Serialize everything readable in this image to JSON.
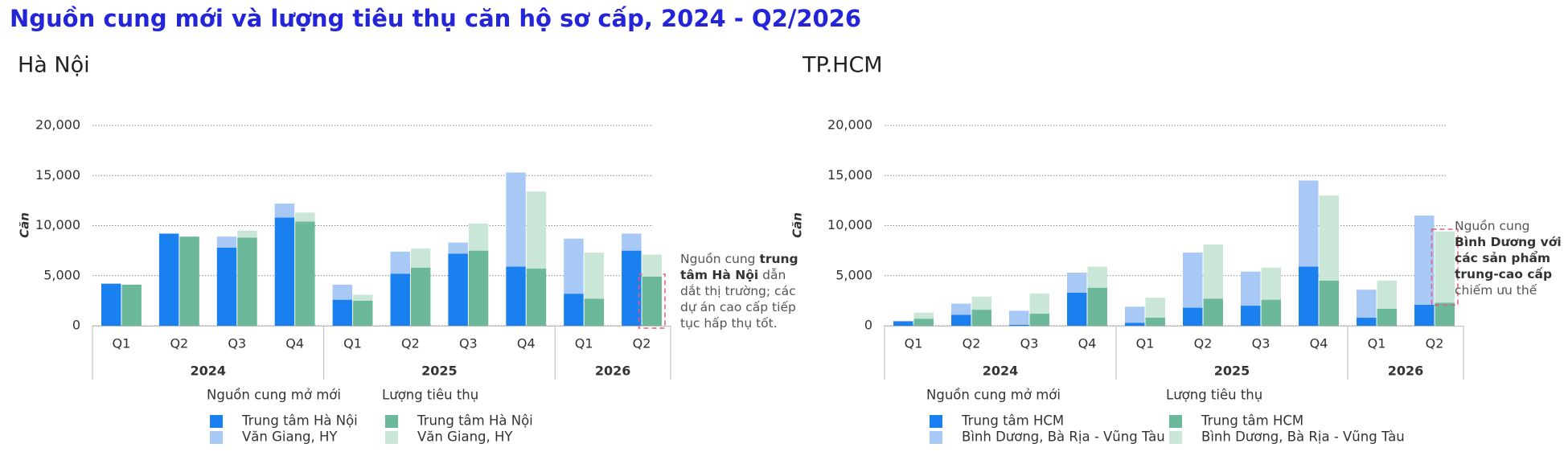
{
  "title": "Nguồn cung mới và lượng tiêu thụ căn hộ sơ cấp, 2024 - Q2/2026",
  "chart_data": [
    {
      "type": "bar",
      "title": "Hà Nội",
      "y_label": "Căn",
      "ylim": [
        0,
        20000
      ],
      "yticks": [
        0,
        {
          "value": 5000,
          "label": "5,000"
        },
        {
          "value": 10000,
          "label": "10,000"
        },
        {
          "value": 15000,
          "label": "15,000"
        },
        {
          "value": 20000,
          "label": "20,000"
        }
      ],
      "grid": true,
      "groups": [
        {
          "name": "2024",
          "categories": [
            "Q1",
            "Q2",
            "Q3",
            "Q4"
          ]
        },
        {
          "name": "2025",
          "categories": [
            "Q1",
            "Q2",
            "Q3",
            "Q4"
          ]
        },
        {
          "name": "2026",
          "categories": [
            "Q1",
            "Q2"
          ]
        }
      ],
      "stacks": [
        {
          "name": "Nguồn cung mở mới",
          "series": [
            {
              "name": "Trung tâm Hà Nội",
              "color": "#1a7fef",
              "values": [
                4200,
                9200,
                7800,
                10800,
                2600,
                5200,
                7200,
                5900,
                3200,
                7500
              ]
            },
            {
              "name": "Văn Giang, HY",
              "color": "#a8c8f5",
              "values": [
                0,
                0,
                1100,
                1400,
                1500,
                2200,
                1100,
                9400,
                5500,
                1700
              ]
            }
          ]
        },
        {
          "name": "Lượng tiêu thụ",
          "series": [
            {
              "name": "Trung tâm Hà Nội",
              "color": "#6bb89a",
              "values": [
                4100,
                8900,
                8800,
                10400,
                2500,
                5800,
                7500,
                5700,
                2700,
                4900
              ]
            },
            {
              "name": "Văn Giang, HY",
              "color": "#c9e6d6",
              "values": [
                0,
                0,
                700,
                900,
                600,
                1900,
                2700,
                7700,
                4600,
                2200
              ]
            }
          ]
        }
      ],
      "annotation": [
        {
          "text": "Nguồn cung "
        },
        {
          "text": "trung tâm Hà Nội",
          "bold": true
        },
        {
          "text": " dẫn dắt thị trường; các dự án cao cấp tiếp tục hấp thụ tốt."
        }
      ]
    },
    {
      "type": "bar",
      "title": "TP.HCM",
      "y_label": "Căn",
      "ylim": [
        0,
        20000
      ],
      "yticks": [
        0,
        {
          "value": 5000,
          "label": "5,000"
        },
        {
          "value": 10000,
          "label": "10,000"
        },
        {
          "value": 15000,
          "label": "15,000"
        },
        {
          "value": 20000,
          "label": "20,000"
        }
      ],
      "grid": true,
      "groups": [
        {
          "name": "2024",
          "categories": [
            "Q1",
            "Q2",
            "Q3",
            "Q4"
          ]
        },
        {
          "name": "2025",
          "categories": [
            "Q1",
            "Q2",
            "Q3",
            "Q4"
          ]
        },
        {
          "name": "2026",
          "categories": [
            "Q1",
            "Q2"
          ]
        }
      ],
      "stacks": [
        {
          "name": "Nguồn cung mở mới",
          "series": [
            {
              "name": "Trung tâm HCM",
              "color": "#1a7fef",
              "values": [
                450,
                1100,
                100,
                3300,
                300,
                1800,
                2000,
                5900,
                800,
                2100
              ]
            },
            {
              "name": "Bình Dương, Bà Rịa - Vũng Tàu",
              "color": "#a8c8f5",
              "values": [
                0,
                1100,
                1400,
                2000,
                1600,
                5500,
                3400,
                8600,
                2800,
                8900
              ]
            }
          ]
        },
        {
          "name": "Lượng tiêu thụ",
          "series": [
            {
              "name": "Trung tâm HCM",
              "color": "#6bb89a",
              "values": [
                700,
                1600,
                1200,
                3800,
                800,
                2700,
                2600,
                4500,
                1700,
                2300
              ]
            },
            {
              "name": "Bình Dương, Bà Rịa - Vũng Tàu",
              "color": "#c9e6d6",
              "values": [
                600,
                1300,
                2000,
                2100,
                2000,
                5400,
                3200,
                8500,
                2800,
                7100
              ]
            }
          ]
        }
      ],
      "annotation": [
        {
          "text": "Nguồn cung "
        },
        {
          "text": "Bình Dương với các sản phẩm trung-cao cấp",
          "bold": true
        },
        {
          "text": " chiếm ưu thế"
        }
      ]
    }
  ]
}
